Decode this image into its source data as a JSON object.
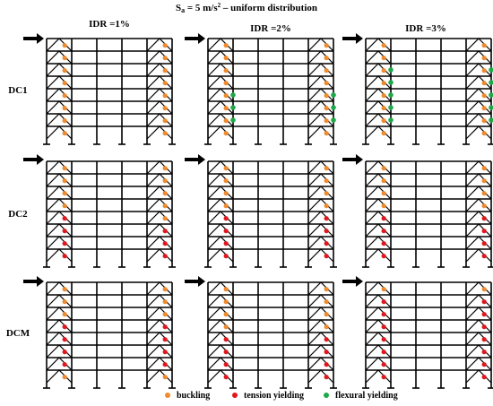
{
  "title_main": "S",
  "title_sub": "a",
  "title_rest": " = 5 m/s",
  "title_sup": "2",
  "title_tail": " – uniform distribution",
  "columns": [
    {
      "label": "IDR =1%"
    },
    {
      "label": "IDR =2%"
    },
    {
      "label": "IDR =3%"
    }
  ],
  "rows": [
    {
      "label": "DC1"
    },
    {
      "label": "DC2"
    },
    {
      "label": "DCM"
    }
  ],
  "frame": {
    "stories": 8,
    "bays": 5,
    "braced_bays": [
      0,
      4
    ]
  },
  "legend": [
    {
      "key": "buckling",
      "label": "buckling",
      "color": "#f08a2c"
    },
    {
      "key": "tension",
      "label": "tension yielding",
      "color": "#e3161c"
    },
    {
      "key": "flexural",
      "label": "flexural yielding",
      "color": "#1fa84a"
    }
  ],
  "colors": {
    "buckling": "#f08a2c",
    "tension": "#e3161c",
    "flexural": "#1fa84a",
    "frame": "#000000"
  },
  "panels": [
    [
      {
        "left": "BBBBBBBB",
        "right": "BBBBBBBB",
        "flex_l": [],
        "flex_r": []
      },
      {
        "left": "BBBBBBBB",
        "right": "BBBBBBBB",
        "flex_l": [
          4,
          5,
          6
        ],
        "flex_r": [
          4,
          5,
          6
        ]
      },
      {
        "left": "BBBBBBBB",
        "right": "BBBBBBBB",
        "flex_l": [
          2,
          3,
          4,
          5,
          6
        ],
        "flex_r": [
          2,
          3,
          4,
          5,
          6
        ]
      }
    ],
    [
      {
        "left": "BBBBTTTT",
        "right": "BBBBBTTT",
        "flex_l": [],
        "flex_r": []
      },
      {
        "left": "BBBBTTTT",
        "right": "BBBBTTTT",
        "flex_l": [],
        "flex_r": []
      },
      {
        "left": "BBBBTTTT",
        "right": "BBBBTTTT",
        "flex_l": [],
        "flex_r": []
      }
    ],
    [
      {
        "left": "BBBTTTTB",
        "right": "BBBTTTTB",
        "flex_l": [],
        "flex_r": []
      },
      {
        "left": "BBBBTTTT",
        "right": "BBBBTTTT",
        "flex_l": [],
        "flex_r": []
      },
      {
        "left": "BTTTTTTT",
        "right": "BTTTTTTT",
        "flex_l": [],
        "flex_r": []
      }
    ]
  ]
}
